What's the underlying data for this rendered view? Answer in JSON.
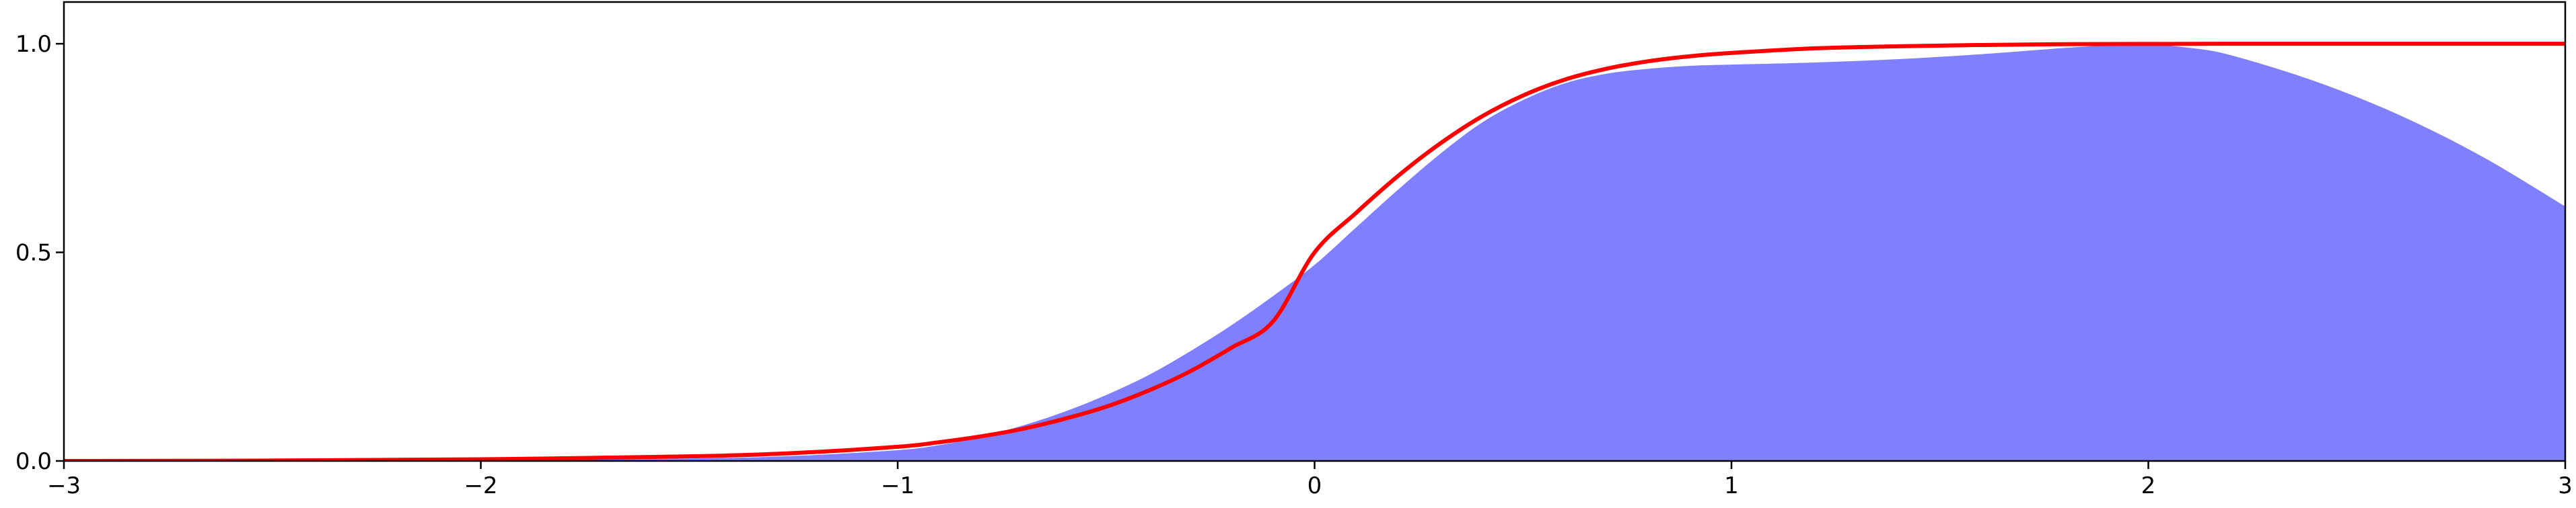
{
  "chart_data": {
    "type": "area",
    "title": "",
    "xlabel": "",
    "ylabel": "",
    "xlim": [
      -3,
      3
    ],
    "ylim": [
      0,
      1.1
    ],
    "grid": false,
    "legend": "none",
    "x_ticks": [
      -3,
      -2,
      -1,
      0,
      1,
      2,
      3
    ],
    "x_tick_labels": [
      "−3",
      "−2",
      "−1",
      "0",
      "1",
      "2",
      "3"
    ],
    "y_ticks": [
      0.0,
      0.5,
      1.0
    ],
    "y_tick_labels": [
      "0.0",
      "0.5",
      "1.0"
    ],
    "series": [
      {
        "kind": "area",
        "color": "#8080ff",
        "x": [
          -3.0,
          -2.5,
          -2.0,
          -1.5,
          -1.25,
          -1.0,
          -0.9,
          -0.8,
          -0.7,
          -0.6,
          -0.5,
          -0.4,
          -0.3,
          -0.2,
          -0.1,
          0.0,
          0.1,
          0.2,
          0.3,
          0.4,
          0.5,
          0.6,
          0.7,
          0.8,
          0.9,
          1.0,
          1.2,
          1.4,
          1.6,
          1.8,
          1.9,
          2.0,
          2.1,
          2.2,
          2.4,
          2.6,
          2.8,
          3.0
        ],
        "y": [
          0.0,
          0.0,
          0.002,
          0.006,
          0.012,
          0.026,
          0.038,
          0.058,
          0.085,
          0.118,
          0.158,
          0.205,
          0.262,
          0.325,
          0.395,
          0.47,
          0.56,
          0.65,
          0.735,
          0.81,
          0.865,
          0.905,
          0.928,
          0.94,
          0.947,
          0.95,
          0.955,
          0.963,
          0.975,
          0.99,
          0.996,
          0.998,
          0.99,
          0.972,
          0.91,
          0.83,
          0.73,
          0.61
        ]
      },
      {
        "kind": "line",
        "color": "#ff0000",
        "x": [
          -3.0,
          -2.5,
          -2.0,
          -1.5,
          -1.25,
          -1.0,
          -0.9,
          -0.8,
          -0.7,
          -0.6,
          -0.5,
          -0.4,
          -0.3,
          -0.2,
          -0.1,
          0.0,
          0.1,
          0.2,
          0.3,
          0.4,
          0.5,
          0.6,
          0.7,
          0.8,
          0.9,
          1.0,
          1.2,
          1.4,
          1.6,
          1.8,
          2.0,
          2.2,
          2.4,
          2.6,
          2.8,
          3.0
        ],
        "y": [
          0.0,
          0.001,
          0.004,
          0.011,
          0.019,
          0.034,
          0.045,
          0.059,
          0.077,
          0.101,
          0.13,
          0.168,
          0.214,
          0.271,
          0.334,
          0.5,
          0.595,
          0.683,
          0.76,
          0.825,
          0.876,
          0.914,
          0.94,
          0.958,
          0.97,
          0.978,
          0.989,
          0.994,
          0.997,
          0.999,
          0.9995,
          1.0,
          1.0,
          1.0,
          1.0,
          1.0
        ]
      }
    ]
  }
}
